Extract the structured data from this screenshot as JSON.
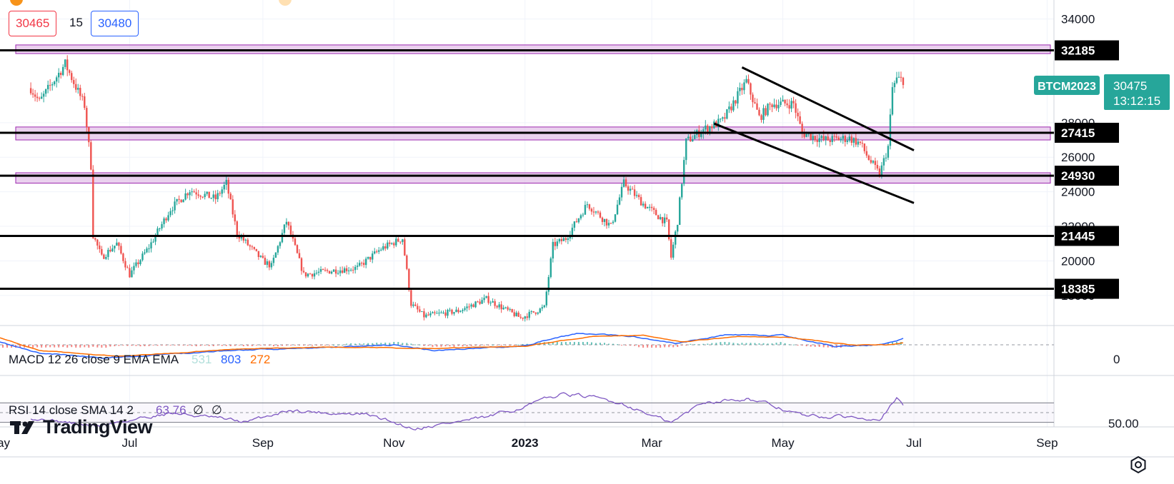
{
  "header": {
    "bid_price": "30465",
    "spread": "15",
    "ask_price": "30480"
  },
  "symbol_tag": "BTCM2023",
  "price_tag": {
    "price": "30475",
    "countdown": "13:12:15",
    "color": "#26a69a"
  },
  "branding": {
    "logo_text": "TradingView"
  },
  "icons": {
    "settings": "settings-icon",
    "logo": "tradingview-logo-icon"
  },
  "colors": {
    "up": "#26a69a",
    "down": "#ef5350",
    "zone_fill": "#e1bee7",
    "zone_border": "#9c27b0",
    "macd": "#2962ff",
    "signal": "#ff6d00",
    "rsi": "#7e57c2"
  },
  "chart_data": {
    "type": "candlestick",
    "price_axis": {
      "ticks": [
        "34000",
        "28000",
        "26000",
        "24000",
        "22000",
        "20000",
        "18000"
      ],
      "ylim": [
        16300,
        35100
      ]
    },
    "time_axis": {
      "labels": [
        "May",
        "Jul",
        "Sep",
        "Nov",
        "2023",
        "Mar",
        "May",
        "Jul",
        "Sep"
      ]
    },
    "horizontal_levels": [
      {
        "label": "32185",
        "value": 32185
      },
      {
        "label": "27415",
        "value": 27415
      },
      {
        "label": "24930",
        "value": 24930
      },
      {
        "label": "21445",
        "value": 21445
      },
      {
        "label": "18385",
        "value": 18385
      }
    ],
    "zones": [
      {
        "from": 32000,
        "to": 32500
      },
      {
        "from": 27000,
        "to": 27750
      },
      {
        "from": 24500,
        "to": 25100
      }
    ],
    "trendlines": [
      {
        "name": "upper",
        "points": [
          [
            "2023-04-12",
            31200
          ],
          [
            "2023-07-01",
            26400
          ]
        ]
      },
      {
        "name": "lower",
        "points": [
          [
            "2023-03-30",
            27950
          ],
          [
            "2023-07-01",
            23350
          ]
        ]
      }
    ],
    "series": [
      {
        "name": "price",
        "key_points": [
          [
            "2022-05-16",
            30000
          ],
          [
            "2022-05-20",
            29200
          ],
          [
            "2022-06-01",
            31400
          ],
          [
            "2022-06-10",
            29000
          ],
          [
            "2022-06-13",
            25500
          ],
          [
            "2022-06-14",
            21500
          ],
          [
            "2022-06-18",
            20200
          ],
          [
            "2022-06-25",
            21000
          ],
          [
            "2022-07-01",
            19200
          ],
          [
            "2022-07-10",
            20800
          ],
          [
            "2022-07-20",
            23000
          ],
          [
            "2022-07-29",
            24100
          ],
          [
            "2022-08-10",
            23600
          ],
          [
            "2022-08-15",
            24500
          ],
          [
            "2022-08-20",
            21600
          ],
          [
            "2022-09-01",
            20000
          ],
          [
            "2022-09-05",
            19700
          ],
          [
            "2022-09-12",
            22300
          ],
          [
            "2022-09-20",
            19200
          ],
          [
            "2022-10-01",
            19400
          ],
          [
            "2022-10-15",
            19600
          ],
          [
            "2022-10-26",
            20700
          ],
          [
            "2022-11-05",
            21300
          ],
          [
            "2022-11-09",
            17500
          ],
          [
            "2022-11-15",
            16800
          ],
          [
            "2022-12-01",
            17100
          ],
          [
            "2022-12-14",
            17800
          ],
          [
            "2022-12-30",
            16700
          ],
          [
            "2023-01-10",
            17300
          ],
          [
            "2023-01-14",
            20900
          ],
          [
            "2023-01-20",
            21300
          ],
          [
            "2023-01-30",
            23300
          ],
          [
            "2023-02-10",
            22000
          ],
          [
            "2023-02-16",
            24500
          ],
          [
            "2023-02-25",
            23300
          ],
          [
            "2023-03-08",
            22200
          ],
          [
            "2023-03-10",
            20200
          ],
          [
            "2023-03-13",
            22300
          ],
          [
            "2023-03-17",
            26900
          ],
          [
            "2023-03-25",
            27600
          ],
          [
            "2023-04-03",
            28100
          ],
          [
            "2023-04-14",
            30400
          ],
          [
            "2023-04-20",
            28300
          ],
          [
            "2023-04-26",
            29100
          ],
          [
            "2023-05-06",
            29100
          ],
          [
            "2023-05-10",
            27400
          ],
          [
            "2023-05-20",
            27000
          ],
          [
            "2023-06-01",
            27100
          ],
          [
            "2023-06-06",
            26800
          ],
          [
            "2023-06-10",
            25900
          ],
          [
            "2023-06-15",
            25000
          ],
          [
            "2023-06-19",
            26600
          ],
          [
            "2023-06-21",
            30000
          ],
          [
            "2023-06-23",
            30500
          ],
          [
            "2023-06-26",
            30475
          ]
        ]
      }
    ],
    "macd": {
      "label": "MACD 12 26 close 9 EMA EMA",
      "histogram_value": "531",
      "macd_value": "803",
      "signal_value": "272",
      "zero_label": "0"
    },
    "rsi": {
      "label": "RSI 14 close SMA 14 2",
      "value": "63.76",
      "extra_values": [
        "∅",
        "∅"
      ],
      "level_label": "50.00",
      "key_points": [
        [
          "2022-05-16",
          40
        ],
        [
          "2022-06-15",
          22
        ],
        [
          "2022-07-20",
          50
        ],
        [
          "2022-08-25",
          30
        ],
        [
          "2022-09-12",
          55
        ],
        [
          "2022-10-20",
          45
        ],
        [
          "2022-11-10",
          18
        ],
        [
          "2022-12-15",
          40
        ],
        [
          "2023-01-20",
          90
        ],
        [
          "2023-02-15",
          70
        ],
        [
          "2023-03-10",
          28
        ],
        [
          "2023-03-25",
          72
        ],
        [
          "2023-04-14",
          80
        ],
        [
          "2023-05-12",
          42
        ],
        [
          "2023-06-15",
          40
        ],
        [
          "2023-06-23",
          78
        ],
        [
          "2023-06-26",
          64
        ]
      ]
    }
  }
}
